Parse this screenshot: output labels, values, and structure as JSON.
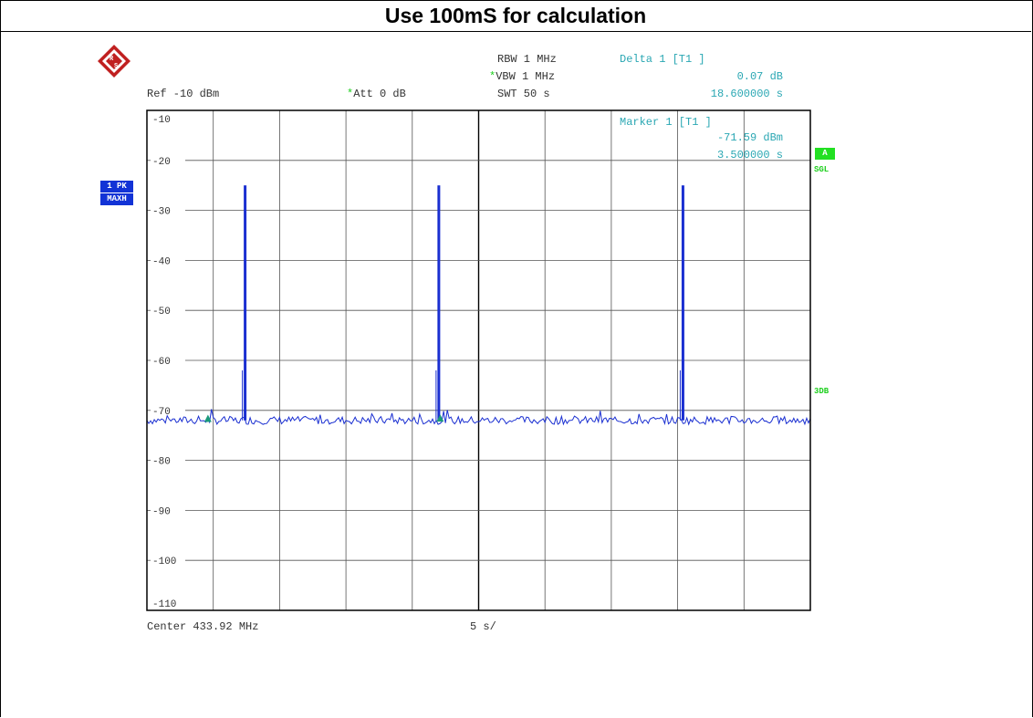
{
  "title": "Use 100mS for calculation",
  "header": {
    "ref": "Ref -10 dBm",
    "att_star": "*",
    "att": "Att  0 dB",
    "rbw": "RBW 1 MHz",
    "vbw_star": "*",
    "vbw": "VBW 1 MHz",
    "swt": "SWT 50 s",
    "delta_label": "Delta 1 [T1 ]",
    "delta_db": "0.07 dB",
    "delta_time": "18.600000 s"
  },
  "marker": {
    "label": "Marker 1 [T1 ]",
    "level": "-71.59 dBm",
    "time": "3.500000 s"
  },
  "side_labels": {
    "trace_badge_1": "1 PK",
    "trace_badge_2": "MAXH",
    "a_badge": "A",
    "sgl": "SGL",
    "threedb": "3DB"
  },
  "footer": {
    "center": "Center 433.92 MHz",
    "span": "5 s/"
  },
  "colors": {
    "trace": "#1a2fd1",
    "annotation": "#2aa7b3",
    "status_green": "#20d020",
    "marker": "#1a9a7a"
  },
  "chart_data": {
    "type": "line",
    "ylim": [
      -110,
      -10
    ],
    "xlim": [
      0,
      50
    ],
    "y_ticks": [
      -10,
      -20,
      -30,
      -40,
      -50,
      -60,
      -70,
      -80,
      -90,
      -100,
      -110
    ],
    "grid": true,
    "noise_floor": -72,
    "spikes": [
      {
        "x": 7.4,
        "peak": -25
      },
      {
        "x": 22.0,
        "peak": -25
      },
      {
        "x": 40.4,
        "peak": -25
      }
    ],
    "markers": [
      {
        "name": "1",
        "x": 3.5,
        "y": -71.59
      },
      {
        "name": "delta",
        "x": 22.1,
        "y": -71.52
      }
    ]
  }
}
